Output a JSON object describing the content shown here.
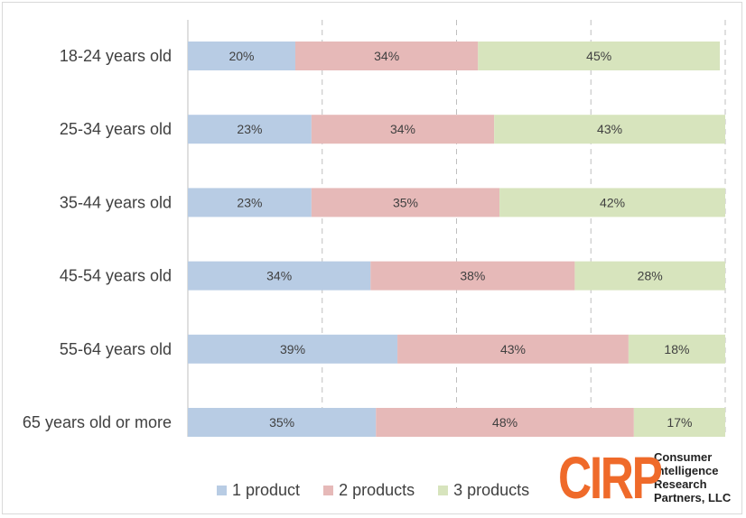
{
  "chart_data": {
    "type": "bar",
    "orientation": "horizontal",
    "stacked": true,
    "categories": [
      "18-24 years old",
      "25-34 years old",
      "35-44 years old",
      "45-54 years old",
      "55-64 years old",
      "65 years old or more"
    ],
    "series": [
      {
        "name": "1 product",
        "color": "#b8cce4",
        "values": [
          20,
          23,
          23,
          34,
          39,
          35
        ],
        "labels": [
          "20%",
          "23%",
          "23%",
          "34%",
          "39%",
          "35%"
        ]
      },
      {
        "name": "2 products",
        "color": "#e6b9b8",
        "values": [
          34,
          34,
          35,
          38,
          43,
          48
        ],
        "labels": [
          "34%",
          "34%",
          "35%",
          "38%",
          "43%",
          "48%"
        ]
      },
      {
        "name": "3 products",
        "color": "#d7e4bd",
        "values": [
          45,
          43,
          42,
          28,
          18,
          17
        ],
        "labels": [
          "45%",
          "43%",
          "42%",
          "28%",
          "18%",
          "17%"
        ]
      }
    ],
    "xlim": [
      0,
      100
    ],
    "grid": "vertical dashed",
    "legend_position": "bottom"
  },
  "logo": {
    "mark": "CIRP",
    "lines": [
      "Consumer",
      "Intelligence",
      "Research",
      "Partners, LLC"
    ]
  }
}
